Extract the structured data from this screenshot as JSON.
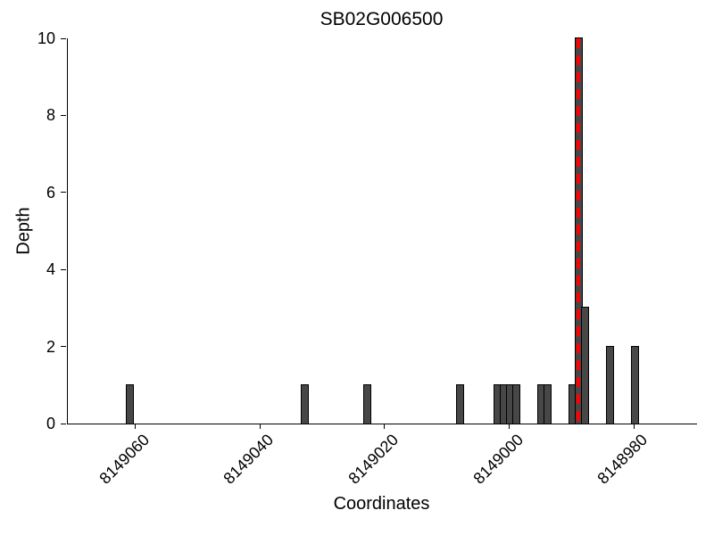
{
  "chart_data": {
    "type": "bar",
    "title": "SB02G006500",
    "xlabel": "Coordinates",
    "ylabel": "Depth",
    "x_ticks": [
      8149060,
      8149040,
      8149020,
      8149000,
      8148980
    ],
    "y_ticks": [
      0,
      2,
      4,
      6,
      8,
      10
    ],
    "xlim": [
      8149071,
      8148970
    ],
    "ylim": [
      0,
      10
    ],
    "x_axis_reversed": true,
    "grid": false,
    "legend": null,
    "bar_width": 1,
    "bars": [
      {
        "coordinate": 8149061,
        "depth": 1
      },
      {
        "coordinate": 8149033,
        "depth": 1
      },
      {
        "coordinate": 8149023,
        "depth": 1
      },
      {
        "coordinate": 8149008,
        "depth": 1
      },
      {
        "coordinate": 8149002,
        "depth": 1
      },
      {
        "coordinate": 8149001,
        "depth": 1
      },
      {
        "coordinate": 8149000,
        "depth": 1
      },
      {
        "coordinate": 8148999,
        "depth": 1
      },
      {
        "coordinate": 8148995,
        "depth": 1
      },
      {
        "coordinate": 8148994,
        "depth": 1
      },
      {
        "coordinate": 8148990,
        "depth": 1
      },
      {
        "coordinate": 8148989,
        "depth": 10
      },
      {
        "coordinate": 8148988,
        "depth": 3
      },
      {
        "coordinate": 8148984,
        "depth": 2
      },
      {
        "coordinate": 8148980,
        "depth": 2
      }
    ],
    "marker_line": {
      "coordinate": 8148989,
      "style": "dashed",
      "color": "#ff0000"
    },
    "colors": {
      "bar_fill": "#474747",
      "bar_edge": "#000000",
      "axis": "#000000",
      "background": "#ffffff"
    }
  }
}
